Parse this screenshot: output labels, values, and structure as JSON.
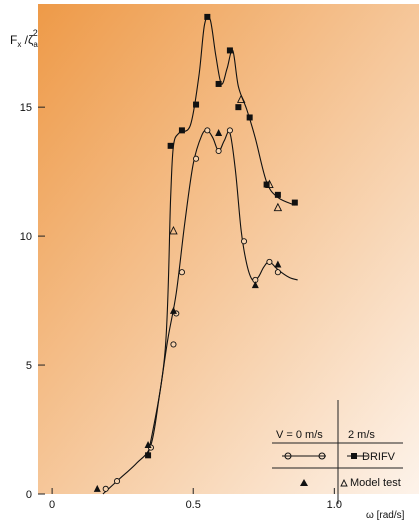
{
  "chart_data": {
    "type": "scatter",
    "ylabel": "F",
    "ylabel_sub": "x",
    "ylabel_tail": " /ζ",
    "ylabel_sub2": "a",
    "ylabel_sup": "2",
    "xlabel": "ω [rad/s]",
    "xlim": [
      -0.05,
      1.3
    ],
    "ylim": [
      0,
      19
    ],
    "x_ticks": [
      {
        "value": 0,
        "label": "0"
      },
      {
        "value": 0.5,
        "label": "0.5"
      },
      {
        "value": 1.0,
        "label": "1.0"
      }
    ],
    "y_ticks": [
      {
        "value": 0,
        "label": "0"
      },
      {
        "value": 5,
        "label": "5"
      },
      {
        "value": 10,
        "label": "10"
      },
      {
        "value": 15,
        "label": "15"
      }
    ],
    "background": {
      "top_left": "#ee9a48",
      "bottom_right": "#fdf3ea"
    },
    "series": [
      {
        "name": "DRIFV",
        "condition": "2 m/s",
        "marker": "square",
        "color": "#111111",
        "x": [
          0.34,
          0.42,
          0.46,
          0.51,
          0.55,
          0.59,
          0.63,
          0.66,
          0.7,
          0.76,
          0.8,
          0.86
        ],
        "y": [
          1.5,
          13.5,
          14.1,
          15.1,
          18.5,
          15.9,
          17.2,
          15.0,
          14.6,
          12.0,
          11.6,
          11.3
        ]
      },
      {
        "name": "DRIFV",
        "condition": "0 m/s",
        "marker": "circle",
        "color": "#111111",
        "x": [
          0.19,
          0.23,
          0.35,
          0.43,
          0.44,
          0.46,
          0.51,
          0.55,
          0.59,
          0.63,
          0.68,
          0.72,
          0.77,
          0.8
        ],
        "y": [
          0.2,
          0.5,
          1.8,
          5.8,
          7.0,
          8.6,
          13.0,
          14.1,
          13.3,
          14.1,
          9.8,
          8.3,
          9.0,
          8.6
        ]
      },
      {
        "name": "Model test",
        "condition": "2 m/s",
        "marker": "triangle-open",
        "color": "#111111",
        "x": [
          0.43,
          0.67,
          0.77,
          0.8
        ],
        "y": [
          10.2,
          15.3,
          12.0,
          11.1
        ]
      },
      {
        "name": "Model test",
        "condition": "0 m/s",
        "marker": "triangle-filled",
        "color": "#111111",
        "x": [
          0.16,
          0.34,
          0.43,
          0.59,
          0.72,
          0.8
        ],
        "y": [
          0.2,
          1.9,
          7.1,
          14.0,
          8.1,
          8.9
        ]
      }
    ],
    "curves": [
      {
        "condition": "2 m/s",
        "x": [
          0.34,
          0.4,
          0.42,
          0.43,
          0.45,
          0.49,
          0.52,
          0.54,
          0.56,
          0.58,
          0.6,
          0.62,
          0.64,
          0.66,
          0.69,
          0.72,
          0.76,
          0.8,
          0.86
        ],
        "y": [
          1.5,
          5.5,
          11.5,
          13.5,
          14.0,
          14.3,
          16.2,
          18.2,
          18.4,
          17.0,
          15.9,
          16.5,
          17.2,
          15.8,
          14.9,
          13.8,
          12.1,
          11.5,
          11.2
        ]
      },
      {
        "condition": "0 m/s",
        "x": [
          0.18,
          0.24,
          0.3,
          0.35,
          0.38,
          0.41,
          0.44,
          0.47,
          0.5,
          0.53,
          0.55,
          0.57,
          0.59,
          0.61,
          0.63,
          0.65,
          0.67,
          0.69,
          0.71,
          0.73,
          0.75,
          0.77,
          0.8,
          0.84,
          0.87
        ],
        "y": [
          0.0,
          0.6,
          1.2,
          1.9,
          3.8,
          6.0,
          7.8,
          10.5,
          12.8,
          13.9,
          14.1,
          13.8,
          13.3,
          13.7,
          14.0,
          12.5,
          10.2,
          8.9,
          8.3,
          8.4,
          8.8,
          9.0,
          8.7,
          8.4,
          8.3
        ]
      }
    ],
    "legend": {
      "placement": "bottom-right",
      "header_left": "V = 0 m/s",
      "header_right": "2 m/s",
      "row1_label": "DRIFV",
      "row2_label": "Model test"
    }
  }
}
